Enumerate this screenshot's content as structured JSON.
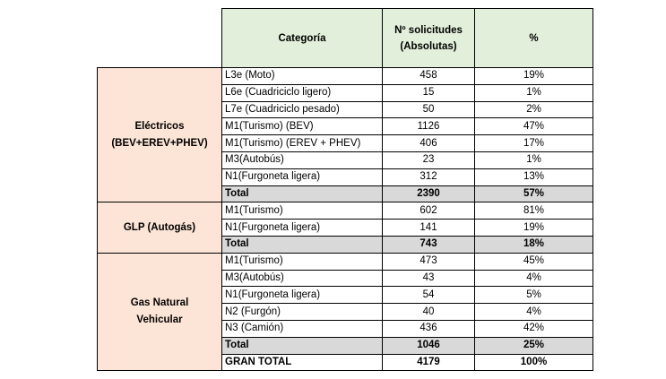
{
  "header": {
    "category": "Categoría",
    "requests_line1": "Nº solicitudes",
    "requests_line2": "(Absolutas)",
    "percent": "%"
  },
  "groups": [
    {
      "label_line1": "Eléctricos",
      "label_line2": "(BEV+EREV+PHEV)",
      "rows": [
        {
          "category": "L3e (Moto)",
          "count": "458",
          "percent": "19%"
        },
        {
          "category": "L6e (Cuadriciclo ligero)",
          "count": "15",
          "percent": "1%"
        },
        {
          "category": "L7e (Cuadriciclo pesado)",
          "count": "50",
          "percent": "2%"
        },
        {
          "category": "M1(Turismo) (BEV)",
          "count": "1126",
          "percent": "47%"
        },
        {
          "category": "M1(Turismo) (EREV + PHEV)",
          "count": "406",
          "percent": "17%"
        },
        {
          "category": "M3(Autobús)",
          "count": "23",
          "percent": "1%"
        },
        {
          "category": "N1(Furgoneta ligera)",
          "count": "312",
          "percent": "13%"
        }
      ],
      "total": {
        "label": "Total",
        "count": "2390",
        "percent": "57%"
      }
    },
    {
      "label_line1": "GLP (Autogás)",
      "label_line2": "",
      "rows": [
        {
          "category": "M1(Turismo)",
          "count": "602",
          "percent": "81%"
        },
        {
          "category": "N1(Furgoneta ligera)",
          "count": "141",
          "percent": "19%"
        }
      ],
      "total": {
        "label": "Total",
        "count": "743",
        "percent": "18%"
      }
    },
    {
      "label_line1": "Gas Natural",
      "label_line2": "Vehicular",
      "rows": [
        {
          "category": "M1(Turismo)",
          "count": "473",
          "percent": "45%"
        },
        {
          "category": "M3(Autobús)",
          "count": "43",
          "percent": "4%"
        },
        {
          "category": "N1(Furgoneta ligera)",
          "count": "54",
          "percent": "5%"
        },
        {
          "category": "N2 (Furgón)",
          "count": "40",
          "percent": "4%"
        },
        {
          "category": "N3 (Camión)",
          "count": "436",
          "percent": "42%"
        }
      ],
      "total": {
        "label": "Total",
        "count": "1046",
        "percent": "25%"
      }
    }
  ],
  "grand_total": {
    "label": "GRAN TOTAL",
    "count": "4179",
    "percent": "100%"
  },
  "colors": {
    "header_bg": "#e2efda",
    "group_bg": "#fce4d6",
    "total_bg": "#d9d9d9"
  }
}
